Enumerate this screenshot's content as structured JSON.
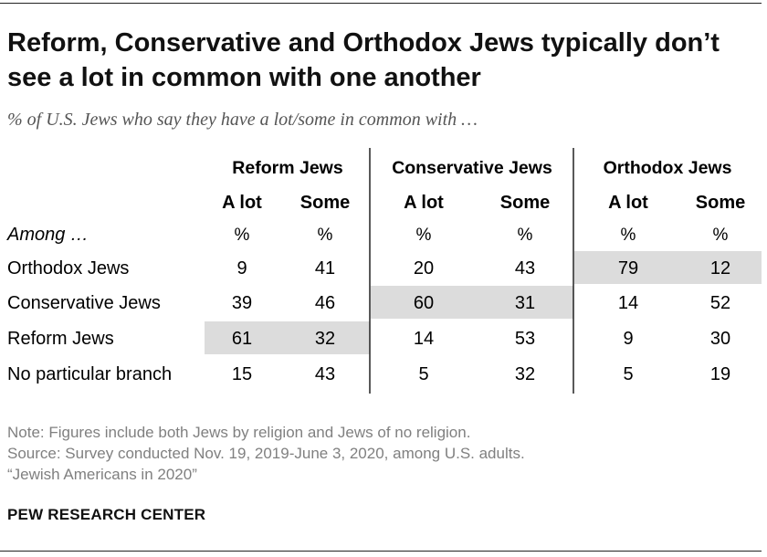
{
  "title": "Reform, Conservative and Orthodox Jews typically don’t see a lot in common with one another",
  "subtitle": "% of U.S. Jews who say they have a lot/some in common with …",
  "notes": {
    "note": "Note: Figures include both Jews by religion and Jews of no religion.",
    "source": "Source: Survey conducted Nov. 19, 2019-June 3, 2020, among U.S. adults.",
    "report": "“Jewish Americans in 2020”"
  },
  "brand": "PEW RESEARCH CENTER",
  "colors": {
    "highlight": "#dcdcdc",
    "text": "#000000",
    "note": "#808080"
  },
  "chart_data": {
    "type": "table",
    "row_header": "Among …",
    "groups": [
      "Reform Jews",
      "Conservative Jews",
      "Orthodox Jews"
    ],
    "subcolumns": [
      "A lot",
      "Some"
    ],
    "unit_row": [
      "%",
      "%",
      "%",
      "%",
      "%",
      "%"
    ],
    "rows": [
      {
        "label": "Orthodox Jews",
        "values": [
          9,
          41,
          20,
          43,
          79,
          12
        ],
        "highlight_group": 2
      },
      {
        "label": "Conservative Jews",
        "values": [
          39,
          46,
          60,
          31,
          14,
          52
        ],
        "highlight_group": 1
      },
      {
        "label": "Reform Jews",
        "values": [
          61,
          32,
          14,
          53,
          9,
          30
        ],
        "highlight_group": 0
      },
      {
        "label": "No particular branch",
        "values": [
          15,
          43,
          5,
          32,
          5,
          19
        ],
        "highlight_group": null
      }
    ]
  }
}
